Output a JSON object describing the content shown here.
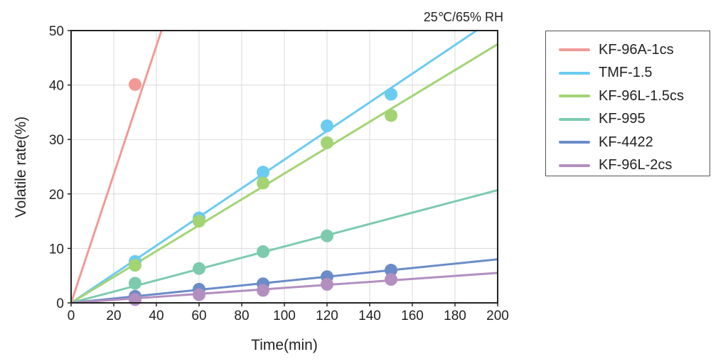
{
  "chart_data": {
    "type": "line",
    "annotation": "25℃/65% RH",
    "xlabel": "Time(min)",
    "ylabel": "Volatile rate(%)",
    "xlim": [
      0,
      200
    ],
    "ylim": [
      0,
      50
    ],
    "xticks": [
      "0",
      "20",
      "40",
      "60",
      "80",
      "100",
      "120",
      "140",
      "160",
      "180",
      "200"
    ],
    "yticks": [
      "0",
      "10",
      "20",
      "30",
      "40",
      "50"
    ],
    "grid": true,
    "legend_position": "right",
    "series": [
      {
        "name": "KF-96A-1cs",
        "color": "#f19a95",
        "slope": 1.18,
        "points": [
          [
            30,
            40.1
          ]
        ]
      },
      {
        "name": "TMF-1.5",
        "color": "#6ccbf0",
        "slope": 0.263,
        "points": [
          [
            30,
            7.6
          ],
          [
            60,
            15.6
          ],
          [
            90,
            24.0
          ],
          [
            120,
            32.5
          ],
          [
            150,
            38.3
          ]
        ]
      },
      {
        "name": "KF-96L-1.5cs",
        "color": "#a3d474",
        "slope": 0.2375,
        "points": [
          [
            30,
            6.9
          ],
          [
            60,
            15.0
          ],
          [
            90,
            22.0
          ],
          [
            120,
            29.4
          ],
          [
            150,
            34.4
          ]
        ]
      },
      {
        "name": "KF-995",
        "color": "#7ccbaf",
        "slope": 0.1035,
        "points": [
          [
            30,
            3.6
          ],
          [
            60,
            6.3
          ],
          [
            90,
            9.4
          ],
          [
            120,
            12.3
          ]
        ]
      },
      {
        "name": "KF-4422",
        "color": "#6b8cc8",
        "slope": 0.04,
        "points": [
          [
            30,
            1.2
          ],
          [
            60,
            2.5
          ],
          [
            90,
            3.5
          ],
          [
            120,
            4.8
          ],
          [
            150,
            6.0
          ]
        ]
      },
      {
        "name": "KF-96L-2cs",
        "color": "#b38fc0",
        "slope": 0.0275,
        "points": [
          [
            30,
            0.6
          ],
          [
            60,
            1.5
          ],
          [
            90,
            2.3
          ],
          [
            120,
            3.4
          ],
          [
            150,
            4.3
          ]
        ]
      }
    ]
  }
}
